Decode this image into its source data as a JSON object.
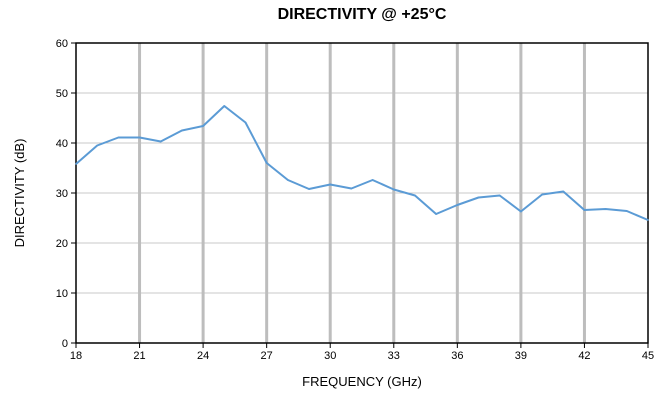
{
  "chart_data": {
    "type": "line",
    "title": "DIRECTIVITY @ +25°C",
    "xlabel": "FREQUENCY (GHz)",
    "ylabel": "DIRECTIVITY (dB)",
    "xlim": [
      18,
      45
    ],
    "ylim": [
      0,
      60
    ],
    "xticks": [
      18,
      21,
      24,
      27,
      30,
      33,
      36,
      39,
      42,
      45
    ],
    "yticks": [
      0,
      10,
      20,
      30,
      40,
      50,
      60
    ],
    "vertical_grid": "every 3 GHz",
    "horizontal_grid": "every 10 dB",
    "line_color": "#5b9bd5",
    "series": [
      {
        "x": [
          18,
          19,
          20,
          21,
          22,
          23,
          24,
          25,
          26,
          27,
          28,
          29,
          30,
          31,
          32,
          33,
          34,
          35,
          36,
          37,
          38,
          39,
          40,
          41,
          42,
          43,
          44,
          45
        ],
        "y": [
          35.8,
          39.5,
          41.1,
          41.1,
          40.3,
          42.5,
          43.4,
          47.4,
          44.1,
          36.0,
          32.6,
          30.8,
          31.7,
          30.9,
          32.6,
          30.7,
          29.5,
          25.8,
          27.6,
          29.1,
          29.5,
          26.3,
          29.7,
          30.3,
          26.6,
          26.8,
          26.4,
          24.6
        ]
      }
    ]
  }
}
